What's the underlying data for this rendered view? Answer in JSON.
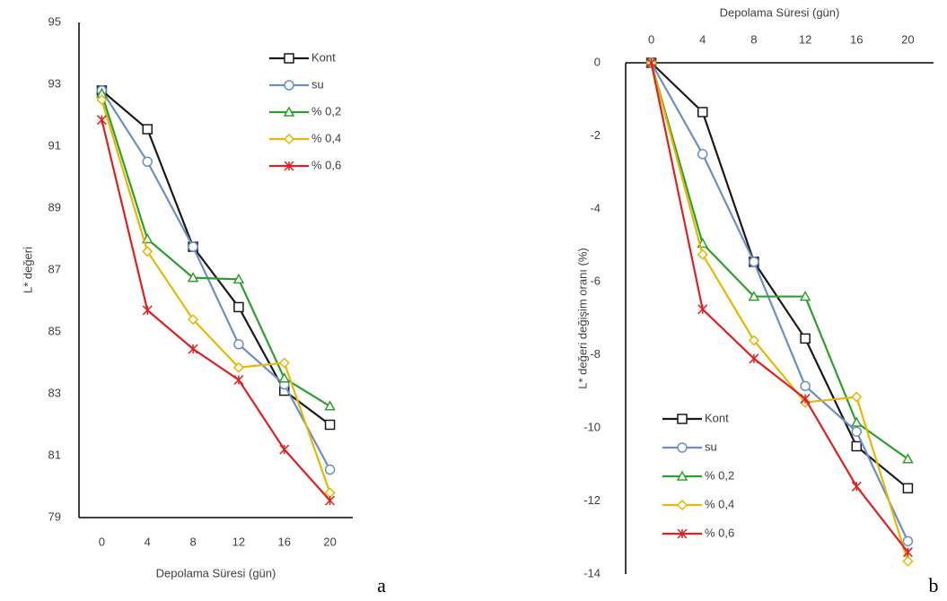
{
  "chart_data": [
    {
      "type": "line",
      "panel_label": "a",
      "x_title": "Depolama Süresi (gün)",
      "y_title": "L* değeri",
      "categories": [
        "0",
        "4",
        "8",
        "12",
        "16",
        "20"
      ],
      "ylim": [
        79,
        95
      ],
      "yticks": [
        79,
        81,
        83,
        85,
        87,
        89,
        91,
        93,
        95
      ],
      "x_axis_position": "bottom",
      "legend": "upper right",
      "grid": false,
      "series": [
        {
          "name": "Kont",
          "color": "#1a1a1a",
          "marker": "square",
          "values": [
            92.8,
            91.55,
            87.75,
            85.8,
            83.1,
            82.0
          ]
        },
        {
          "name": "su",
          "color": "#6a8fc8",
          "marker": "circle",
          "values": [
            92.8,
            90.5,
            87.75,
            84.6,
            83.3,
            80.55
          ]
        },
        {
          "name": "% 0,2",
          "color": "#2ca02c",
          "marker": "triangle",
          "values": [
            92.7,
            88.0,
            86.75,
            86.7,
            83.5,
            82.6
          ]
        },
        {
          "name": "% 0,4",
          "color": "#e6b800",
          "marker": "diamond",
          "values": [
            92.5,
            87.6,
            85.4,
            83.85,
            84.0,
            79.8
          ]
        },
        {
          "name": "% 0,6",
          "color": "#e02020",
          "marker": "star",
          "values": [
            91.85,
            85.7,
            84.45,
            83.45,
            81.2,
            79.55
          ]
        }
      ]
    },
    {
      "type": "line",
      "panel_label": "b",
      "x_title": "Depolama Süresi (gün)",
      "y_title": "L* değeri değişim oranı (%)",
      "categories": [
        "0",
        "4",
        "8",
        "12",
        "16",
        "20"
      ],
      "ylim": [
        -14,
        0
      ],
      "yticks": [
        -14,
        -12,
        -10,
        -8,
        -6,
        -4,
        -2,
        0
      ],
      "x_axis_position": "top",
      "legend": "lower left",
      "grid": false,
      "series": [
        {
          "name": "Kont",
          "color": "#1a1a1a",
          "marker": "square",
          "values": [
            0,
            -1.35,
            -5.45,
            -7.55,
            -10.5,
            -11.65
          ]
        },
        {
          "name": "su",
          "color": "#6a8fc8",
          "marker": "circle",
          "values": [
            0,
            -2.5,
            -5.45,
            -8.85,
            -10.1,
            -13.1
          ]
        },
        {
          "name": "% 0,2",
          "color": "#2ca02c",
          "marker": "triangle",
          "values": [
            0,
            -4.95,
            -6.4,
            -6.4,
            -9.85,
            -10.85
          ]
        },
        {
          "name": "% 0,4",
          "color": "#e6b800",
          "marker": "diamond",
          "values": [
            0,
            -5.25,
            -7.6,
            -9.3,
            -9.15,
            -13.65
          ]
        },
        {
          "name": "% 0,6",
          "color": "#e02020",
          "marker": "star",
          "values": [
            0,
            -6.75,
            -8.1,
            -9.2,
            -11.6,
            -13.4
          ]
        }
      ]
    }
  ]
}
